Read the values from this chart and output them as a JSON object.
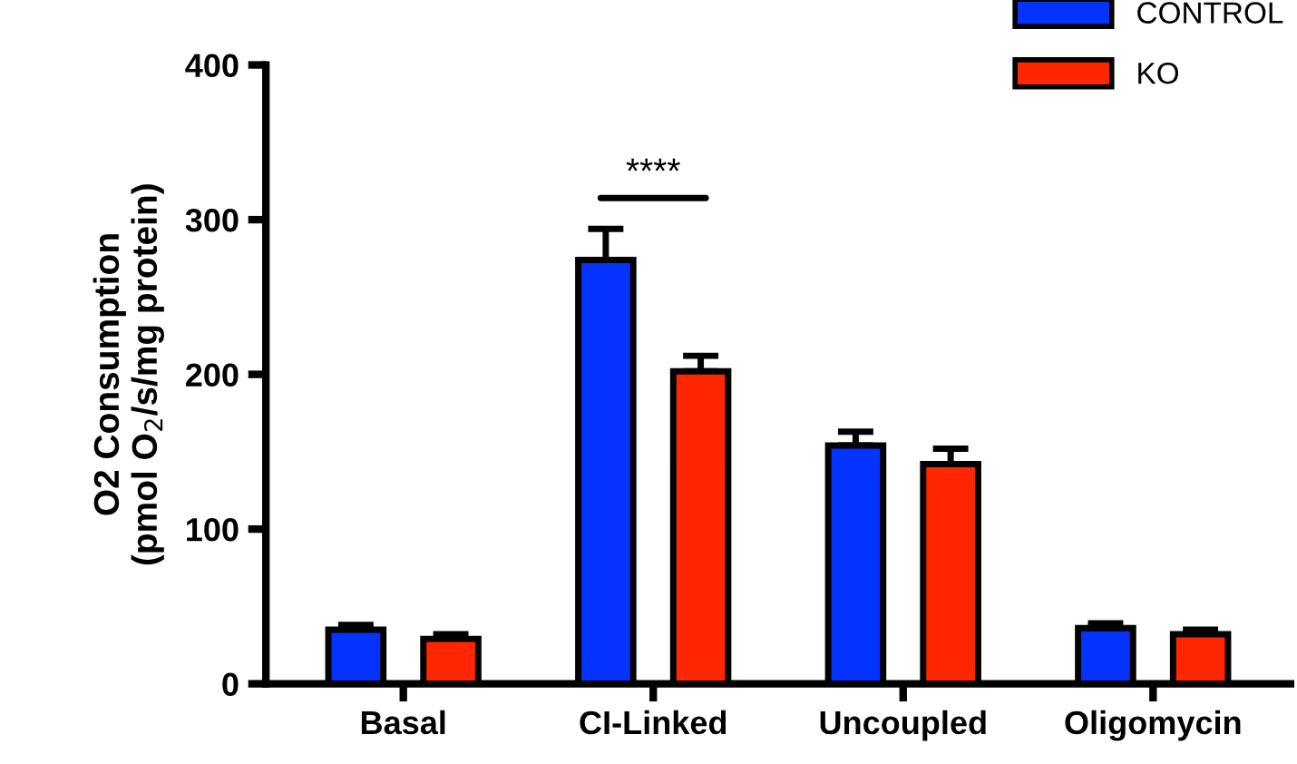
{
  "chart_data": {
    "type": "bar",
    "categories": [
      "Basal",
      "CI-Linked",
      "Uncoupled",
      "Oligomycin"
    ],
    "ylabel": "O2 Consumption\n(pmol O$_{2}$/s/mg protein)",
    "series": [
      {
        "name": "CONTROL",
        "color": "#0433ff",
        "values": [
          35,
          274,
          154,
          36
        ],
        "errors": [
          3,
          20,
          9,
          3
        ]
      },
      {
        "name": "KO",
        "color": "#ff2600",
        "values": [
          29,
          202,
          142,
          32
        ],
        "errors": [
          3,
          10,
          10,
          3
        ]
      }
    ],
    "ylim": [
      0,
      400
    ],
    "yticks": [
      0,
      100,
      200,
      300,
      400
    ],
    "grid": false,
    "legend": "top right",
    "annotations": [
      "****"
    ]
  }
}
